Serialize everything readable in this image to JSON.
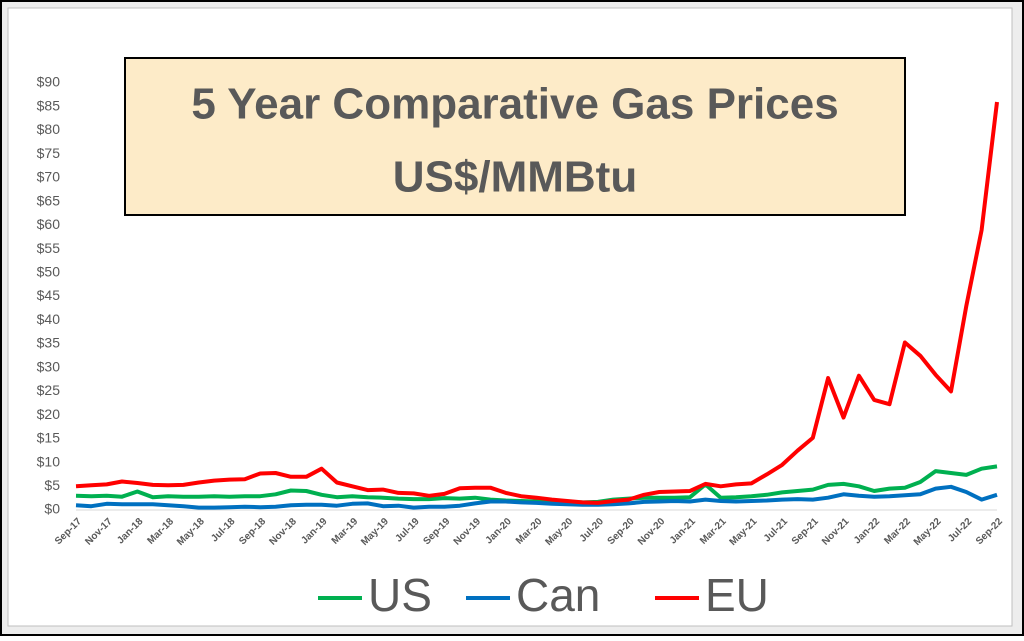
{
  "chart_data": {
    "type": "line",
    "title": "5 Year Comparative Gas Prices",
    "subtitle": "US$/MMBtu",
    "categories": [
      "Sep-17",
      null,
      "Nov-17",
      null,
      "Jan-18",
      null,
      "Mar-18",
      null,
      "May-18",
      null,
      "Jul-18",
      null,
      "Sep-18",
      null,
      "Nov-18",
      null,
      "Jan-19",
      null,
      "Mar-19",
      null,
      "May-19",
      null,
      "Jul-19",
      null,
      "Sep-19",
      null,
      "Nov-19",
      null,
      "Jan-20",
      null,
      "Mar-20",
      null,
      "May-20",
      null,
      "Jul-20",
      null,
      "Sep-20",
      null,
      "Nov-20",
      null,
      "Jan-21",
      null,
      "Mar-21",
      null,
      "May-21",
      null,
      "Jul-21",
      null,
      "Sep-21",
      null,
      "Nov-21",
      null,
      "Jan-22",
      null,
      "Mar-22",
      null,
      "May-22",
      null,
      "Jul-22",
      null,
      "Sep-22"
    ],
    "series": [
      {
        "name": "US",
        "color": "#00b050",
        "values": [
          3.0,
          2.9,
          3.0,
          2.8,
          3.9,
          2.7,
          2.9,
          2.8,
          2.8,
          2.9,
          2.8,
          2.9,
          2.9,
          3.3,
          4.1,
          4.0,
          3.2,
          2.7,
          2.9,
          2.7,
          2.6,
          2.4,
          2.3,
          2.3,
          2.5,
          2.4,
          2.6,
          2.2,
          2.0,
          1.9,
          1.8,
          1.7,
          1.7,
          1.6,
          1.7,
          2.2,
          2.4,
          2.6,
          2.6,
          2.6,
          2.7,
          5.4,
          2.6,
          2.7,
          2.9,
          3.2,
          3.7,
          4.0,
          4.3,
          5.3,
          5.5,
          5.0,
          4.0,
          4.5,
          4.7,
          5.9,
          8.2,
          7.8,
          7.4,
          8.7,
          9.2
        ]
      },
      {
        "name": "Can",
        "color": "#0070c0",
        "values": [
          1.0,
          0.8,
          1.3,
          1.2,
          1.2,
          1.2,
          1.0,
          0.8,
          0.5,
          0.5,
          0.6,
          0.7,
          0.6,
          0.7,
          1.0,
          1.1,
          1.1,
          0.9,
          1.3,
          1.4,
          0.8,
          0.9,
          0.5,
          0.7,
          0.7,
          0.9,
          1.4,
          1.8,
          1.8,
          1.6,
          1.5,
          1.3,
          1.2,
          1.1,
          1.1,
          1.2,
          1.4,
          1.7,
          1.8,
          1.9,
          1.8,
          2.2,
          1.9,
          1.8,
          1.9,
          2.0,
          2.2,
          2.3,
          2.2,
          2.6,
          3.3,
          3.0,
          2.8,
          2.9,
          3.1,
          3.3,
          4.5,
          4.9,
          3.8,
          2.2,
          3.2
        ]
      },
      {
        "name": "EU",
        "color": "#ff0000",
        "values": [
          5.0,
          5.2,
          5.4,
          6.0,
          5.7,
          5.3,
          5.2,
          5.3,
          5.8,
          6.2,
          6.4,
          6.5,
          7.7,
          7.8,
          7.0,
          7.0,
          8.7,
          5.8,
          5.0,
          4.2,
          4.3,
          3.6,
          3.5,
          3.0,
          3.4,
          4.6,
          4.7,
          4.7,
          3.6,
          2.9,
          2.6,
          2.2,
          1.9,
          1.6,
          1.5,
          1.9,
          2.2,
          3.2,
          3.8,
          3.9,
          4.0,
          5.5,
          5.0,
          5.4,
          5.6,
          7.5,
          9.5,
          12.5,
          15.2,
          27.8,
          19.5,
          28.3,
          23.2,
          22.3,
          35.3,
          32.5,
          28.5,
          25.0,
          43,
          59,
          86
        ]
      }
    ],
    "ylim": [
      0,
      90
    ],
    "yticks": [
      {
        "value": 0,
        "label": "$0"
      },
      {
        "value": 5,
        "label": "$5"
      },
      {
        "value": 10,
        "label": "$10"
      },
      {
        "value": 15,
        "label": "$15"
      },
      {
        "value": 20,
        "label": "$20"
      },
      {
        "value": 25,
        "label": "$25"
      },
      {
        "value": 30,
        "label": "$30"
      },
      {
        "value": 35,
        "label": "$35"
      },
      {
        "value": 40,
        "label": "$40"
      },
      {
        "value": 45,
        "label": "$45"
      },
      {
        "value": 50,
        "label": "$50"
      },
      {
        "value": 55,
        "label": "$55"
      },
      {
        "value": 60,
        "label": "$60"
      },
      {
        "value": 65,
        "label": "$65"
      },
      {
        "value": 70,
        "label": "$70"
      },
      {
        "value": 75,
        "label": "$75"
      },
      {
        "value": 80,
        "label": "$80"
      },
      {
        "value": 85,
        "label": "$85"
      },
      {
        "value": 90,
        "label": "$90"
      }
    ],
    "grid": false
  }
}
